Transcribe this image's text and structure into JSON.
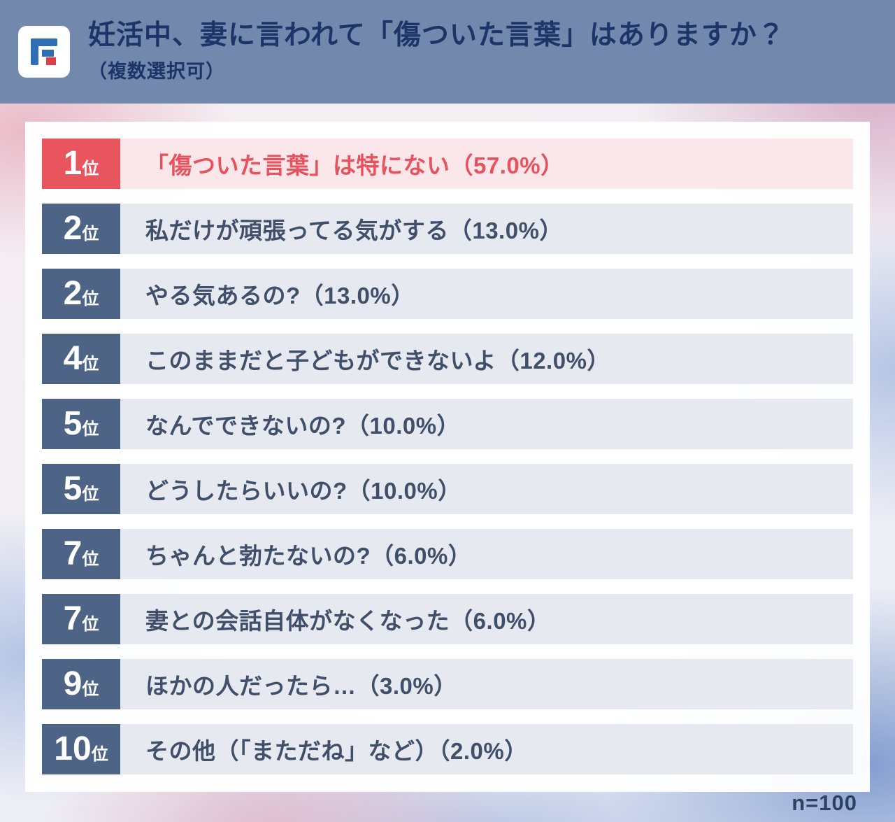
{
  "header": {
    "title": "妊活中、妻に言われて「傷ついた言葉」はありますか？",
    "subtitle": "（複数選択可）",
    "logo": "brand-logo"
  },
  "footer": {
    "sample_size_label": "n=100"
  },
  "colors": {
    "header_bg": "#7289ad",
    "title_text": "#1c3468",
    "badge_bg": "#4e6486",
    "row_bg": "#e6e9ef",
    "row_text": "#40506b",
    "highlight_badge_bg": "#e8555f",
    "highlight_row_bg": "#fbe7e9",
    "highlight_text": "#e8525e",
    "logo_blue": "#2f6db5",
    "logo_red": "#d8404e"
  },
  "chart_data": {
    "type": "table",
    "title": "妊活中、妻に言われて「傷ついた言葉」はありますか？（複数選択可）",
    "sample_size": 100,
    "value_unit": "%",
    "legend_position": "none",
    "rows": [
      {
        "rank": "1",
        "suffix": "位",
        "label": "「傷ついた言葉」は特にない",
        "value": 57.0,
        "display": "「傷ついた言葉」は特にない（57.0%）",
        "highlight": true
      },
      {
        "rank": "2",
        "suffix": "位",
        "label": "私だけが頑張ってる気がする",
        "value": 13.0,
        "display": "私だけが頑張ってる気がする（13.0%）",
        "highlight": false
      },
      {
        "rank": "2",
        "suffix": "位",
        "label": "やる気あるの?",
        "value": 13.0,
        "display": "やる気あるの?（13.0%）",
        "highlight": false
      },
      {
        "rank": "4",
        "suffix": "位",
        "label": "このままだと子どもができないよ",
        "value": 12.0,
        "display": "このままだと子どもができないよ（12.0%）",
        "highlight": false
      },
      {
        "rank": "5",
        "suffix": "位",
        "label": "なんでできないの?",
        "value": 10.0,
        "display": "なんでできないの?（10.0%）",
        "highlight": false
      },
      {
        "rank": "5",
        "suffix": "位",
        "label": "どうしたらいいの?",
        "value": 10.0,
        "display": "どうしたらいいの?（10.0%）",
        "highlight": false
      },
      {
        "rank": "7",
        "suffix": "位",
        "label": "ちゃんと勃たないの?",
        "value": 6.0,
        "display": "ちゃんと勃たないの?（6.0%）",
        "highlight": false
      },
      {
        "rank": "7",
        "suffix": "位",
        "label": "妻との会話自体がなくなった",
        "value": 6.0,
        "display": "妻との会話自体がなくなった（6.0%）",
        "highlight": false
      },
      {
        "rank": "9",
        "suffix": "位",
        "label": "ほかの人だったら…",
        "value": 3.0,
        "display": "ほかの人だったら…（3.0%）",
        "highlight": false
      },
      {
        "rank": "10",
        "suffix": "位",
        "label": "その他（「まただね」など）",
        "value": 2.0,
        "display": "その他（「まただね」など）（2.0%）",
        "highlight": false
      }
    ]
  }
}
